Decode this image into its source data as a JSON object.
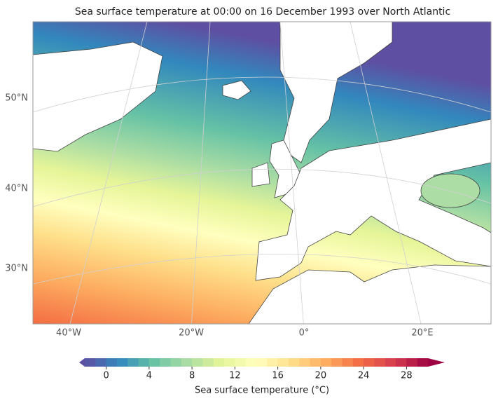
{
  "title": "Sea surface temperature at 00:00 on 16 December 1993 over North Atlantic",
  "map": {
    "lat_labels": [
      "50°N",
      "40°N",
      "30°N"
    ],
    "lon_labels": [
      "40°W",
      "20°W",
      "0°",
      "20°E"
    ]
  },
  "colorbar": {
    "label": "Sea surface temperature (°C)",
    "range": [
      -2,
      30
    ],
    "step": 1,
    "ticks": [
      0,
      4,
      8,
      12,
      16,
      20,
      24,
      28
    ],
    "extend": "both",
    "colormap": [
      "#5e4fa2",
      "#3288bd",
      "#66c2a5",
      "#abdda4",
      "#e6f598",
      "#ffffbf",
      "#fee08b",
      "#fdae61",
      "#f46d43",
      "#d53e4f",
      "#9e0142"
    ]
  }
}
